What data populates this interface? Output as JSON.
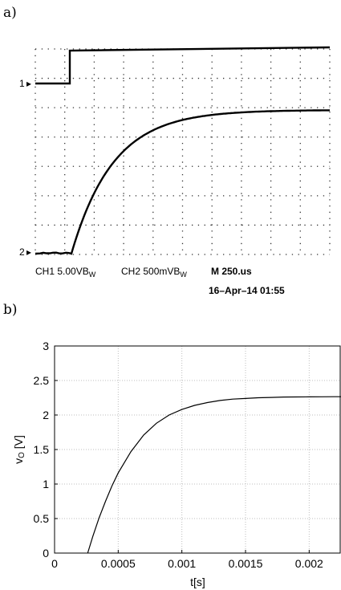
{
  "panels": {
    "a_label": "a)",
    "b_label": "b)"
  },
  "oscilloscope": {
    "ch1_marker": "1",
    "ch2_marker": "2",
    "readout": {
      "ch1": "CH1  5.00VB",
      "ch1_suffix": "W",
      "ch2": "CH2  500mVB",
      "ch2_suffix": "W",
      "timebase": "M 250.us",
      "datetime": "16–Apr–14 01:55"
    },
    "divisions": {
      "x": 10,
      "y": 7
    }
  },
  "chart_data": {
    "type": "line",
    "xlabel": "t[s]",
    "ylabel_main": "v",
    "ylabel_sub": "O",
    "ylabel_unit": " [V]",
    "xlim": [
      0,
      0.00225
    ],
    "ylim": [
      0,
      3
    ],
    "xticks": [
      0,
      0.0005,
      0.001,
      0.0015,
      0.002
    ],
    "xtick_labels": [
      "0",
      "0.0005",
      "0.001",
      "0.0015",
      "0.002"
    ],
    "yticks": [
      0,
      0.5,
      1,
      1.5,
      2,
      2.5,
      3
    ],
    "ytick_labels": [
      "0",
      "0.5",
      "1",
      "1.5",
      "2",
      "2.5",
      "3"
    ],
    "grid": true,
    "series": [
      {
        "x": [
          0.00026,
          0.0003,
          0.00035,
          0.0004,
          0.00045,
          0.0005,
          0.0006,
          0.0007,
          0.0008,
          0.0009,
          0.001,
          0.0011,
          0.0012,
          0.0013,
          0.0014,
          0.0015,
          0.0016,
          0.0017,
          0.0018,
          0.0019,
          0.002,
          0.0021,
          0.0022,
          0.00225
        ],
        "y": [
          0.0,
          0.24,
          0.51,
          0.75,
          0.97,
          1.16,
          1.47,
          1.71,
          1.88,
          2.0,
          2.08,
          2.14,
          2.18,
          2.21,
          2.23,
          2.24,
          2.25,
          2.255,
          2.26,
          2.262,
          2.263,
          2.264,
          2.265,
          2.265
        ]
      }
    ]
  }
}
